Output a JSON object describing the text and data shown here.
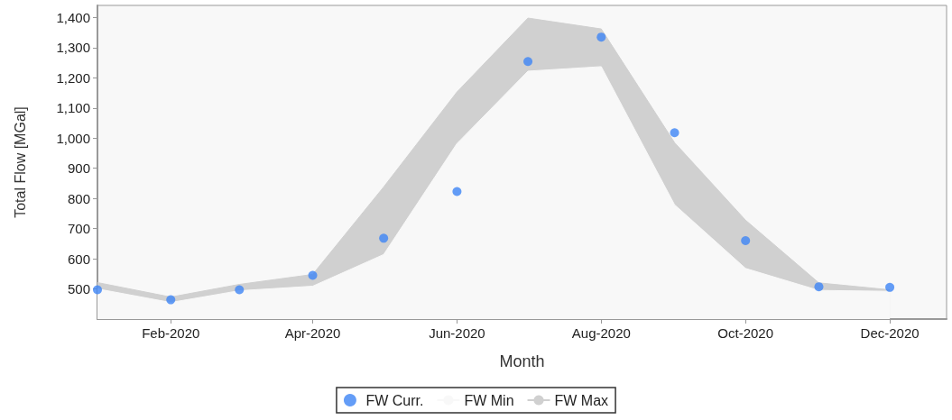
{
  "chart_data": {
    "type": "scatter",
    "xlabel": "Month",
    "ylabel": "Total Flow [MGal]",
    "x": [
      "2020-01-01",
      "2020-02-01",
      "2020-03-01",
      "2020-04-01",
      "2020-05-01",
      "2020-06-01",
      "2020-07-01",
      "2020-08-01",
      "2020-09-01",
      "2020-10-01",
      "2020-11-01",
      "2020-12-01"
    ],
    "series": [
      {
        "name": "FW Curr.",
        "marker": "circle",
        "color": "#3d85f5",
        "values": [
          497,
          464,
          497,
          545,
          668,
          823,
          1254,
          1335,
          1018,
          660,
          507,
          505
        ]
      },
      {
        "name": "FW Min",
        "type": "area",
        "marker": "none",
        "color": "#f8f8f8",
        "values": [
          500,
          455,
          494,
          509,
          614,
          982,
          1222,
          1237,
          779,
          568,
          495,
          492
        ]
      },
      {
        "name": "FW Max",
        "type": "area",
        "marker": "none",
        "color": "#d0d0d0",
        "values": [
          521,
          473,
          515,
          548,
          838,
          1153,
          1398,
          1362,
          985,
          728,
          520,
          497
        ]
      }
    ],
    "xlim": [
      "2020-01-01",
      "2020-12-25"
    ],
    "xticks": [
      {
        "value": "2020-02-01",
        "label": "Feb-2020"
      },
      {
        "value": "2020-04-01",
        "label": "Apr-2020"
      },
      {
        "value": "2020-06-01",
        "label": "Jun-2020"
      },
      {
        "value": "2020-08-01",
        "label": "Aug-2020"
      },
      {
        "value": "2020-10-01",
        "label": "Oct-2020"
      },
      {
        "value": "2020-12-01",
        "label": "Dec-2020"
      }
    ],
    "ylim": [
      400,
      1440
    ],
    "yticks": [
      500,
      600,
      700,
      800,
      900,
      {
        "value": 1000,
        "label": "1,000"
      },
      {
        "value": 1100,
        "label": "1,100"
      },
      {
        "value": 1200,
        "label": "1,200"
      },
      {
        "value": 1300,
        "label": "1,300"
      },
      {
        "value": 1400,
        "label": "1,400"
      }
    ],
    "grid": false,
    "legend": "bottom"
  }
}
